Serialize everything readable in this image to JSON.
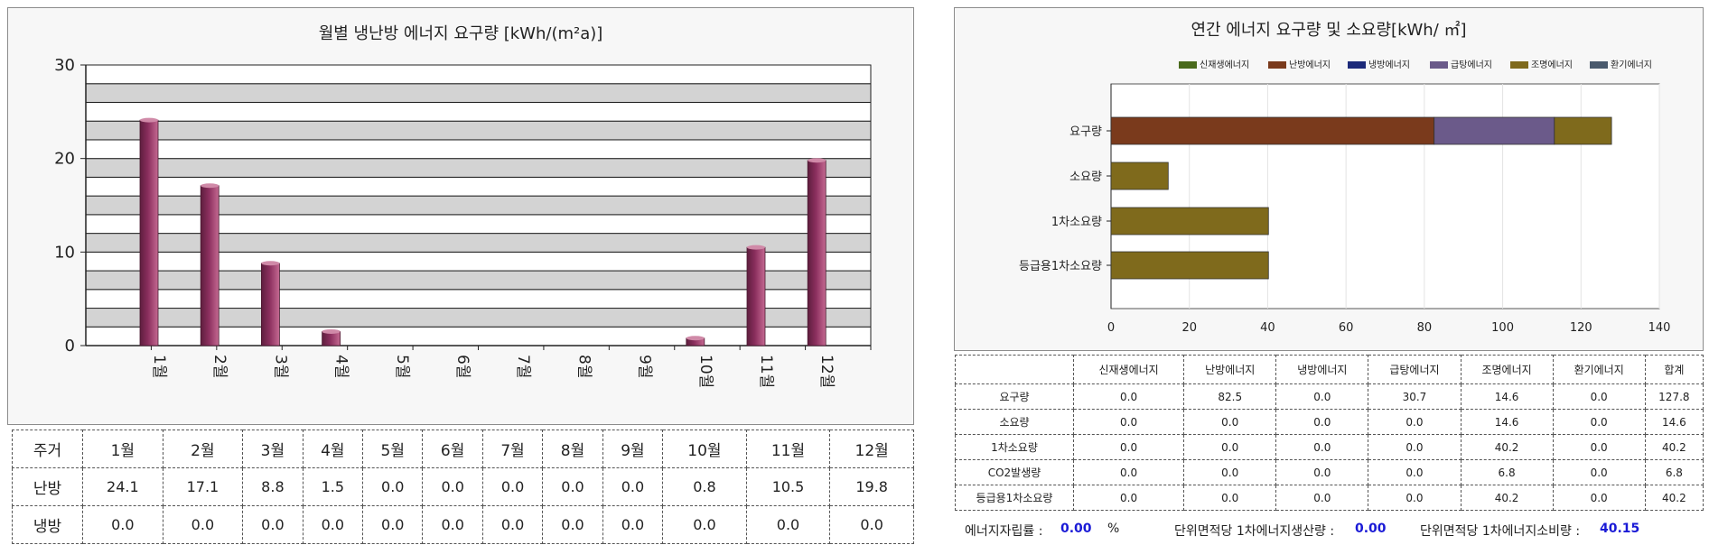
{
  "left_chart": {
    "title": "월별 냉난방 에너지 요구량 [kWh/(m²a)]",
    "chart_data": {
      "type": "bar",
      "categories": [
        "1월",
        "2월",
        "3월",
        "4월",
        "5월",
        "6월",
        "7월",
        "8월",
        "9월",
        "10월",
        "11월",
        "12월"
      ],
      "series": [
        {
          "values": [
            24.1,
            17.1,
            8.8,
            1.5,
            0.0,
            0.0,
            0.0,
            0.0,
            0.0,
            0.8,
            10.5,
            19.8
          ]
        }
      ],
      "ylim": [
        0,
        30
      ],
      "yticks": [
        0,
        10,
        20,
        30
      ],
      "grid": true,
      "bar_color": "#8b2f5e"
    }
  },
  "left_table": {
    "header_label": "주거",
    "months": [
      "1월",
      "2월",
      "3월",
      "4월",
      "5월",
      "6월",
      "7월",
      "8월",
      "9월",
      "10월",
      "11월",
      "12월"
    ],
    "rows": [
      {
        "label": "난방",
        "values": [
          "24.1",
          "17.1",
          "8.8",
          "1.5",
          "0.0",
          "0.0",
          "0.0",
          "0.0",
          "0.0",
          "0.8",
          "10.5",
          "19.8"
        ]
      },
      {
        "label": "냉방",
        "values": [
          "0.0",
          "0.0",
          "0.0",
          "0.0",
          "0.0",
          "0.0",
          "0.0",
          "0.0",
          "0.0",
          "0.0",
          "0.0",
          "0.0"
        ]
      }
    ]
  },
  "right_chart": {
    "title": "연간 에너지 요구량 및 소요량[kWh/ ㎡]",
    "legend": [
      {
        "name": "신재생에너지",
        "color": "#4a6b1c"
      },
      {
        "name": "난방에너지",
        "color": "#7a3a1c"
      },
      {
        "name": "냉방에너지",
        "color": "#1c2a7a"
      },
      {
        "name": "급탕에너지",
        "color": "#6b5a8a"
      },
      {
        "name": "조명에너지",
        "color": "#7f6a1c"
      },
      {
        "name": "환기에너지",
        "color": "#4a5a6e"
      }
    ],
    "chart_data": {
      "type": "bar",
      "orientation": "horizontal",
      "stacked": true,
      "categories": [
        "요구량",
        "소요량",
        "1차소요량",
        "등급용1차소요량"
      ],
      "series": [
        {
          "name": "신재생에너지",
          "values": [
            0.0,
            0.0,
            0.0,
            0.0
          ]
        },
        {
          "name": "난방에너지",
          "values": [
            82.5,
            0.0,
            0.0,
            0.0
          ]
        },
        {
          "name": "냉방에너지",
          "values": [
            0.0,
            0.0,
            0.0,
            0.0
          ]
        },
        {
          "name": "급탕에너지",
          "values": [
            30.7,
            0.0,
            0.0,
            0.0
          ]
        },
        {
          "name": "조명에너지",
          "values": [
            14.6,
            14.6,
            40.2,
            40.2
          ]
        },
        {
          "name": "환기에너지",
          "values": [
            0.0,
            0.0,
            0.0,
            0.0
          ]
        }
      ],
      "xlim": [
        0,
        140
      ],
      "xticks": [
        0,
        20,
        40,
        60,
        80,
        100,
        120,
        140
      ]
    }
  },
  "right_table": {
    "headers": [
      "신재생에너지",
      "난방에너지",
      "냉방에너지",
      "급탕에너지",
      "조명에너지",
      "환기에너지",
      "합계"
    ],
    "rows": [
      {
        "label": "요구량",
        "values": [
          "0.0",
          "82.5",
          "0.0",
          "30.7",
          "14.6",
          "0.0",
          "127.8"
        ]
      },
      {
        "label": "소요량",
        "values": [
          "0.0",
          "0.0",
          "0.0",
          "0.0",
          "14.6",
          "0.0",
          "14.6"
        ]
      },
      {
        "label": "1차소요량",
        "values": [
          "0.0",
          "0.0",
          "0.0",
          "0.0",
          "40.2",
          "0.0",
          "40.2"
        ]
      },
      {
        "label": "CO2발생량",
        "values": [
          "0.0",
          "0.0",
          "0.0",
          "0.0",
          "6.8",
          "0.0",
          "6.8"
        ]
      },
      {
        "label": "등급용1차소요량",
        "values": [
          "0.0",
          "0.0",
          "0.0",
          "0.0",
          "40.2",
          "0.0",
          "40.2"
        ]
      }
    ]
  },
  "footer": {
    "self_sufficiency_label": "에너지자립률 :",
    "self_sufficiency_value": "0.00",
    "self_sufficiency_unit": "%",
    "production_label": "단위면적당 1차에너지생산량 :",
    "production_value": "0.00",
    "consumption_label": "단위면적당 1차에너지소비량 :",
    "consumption_value": "40.15"
  }
}
